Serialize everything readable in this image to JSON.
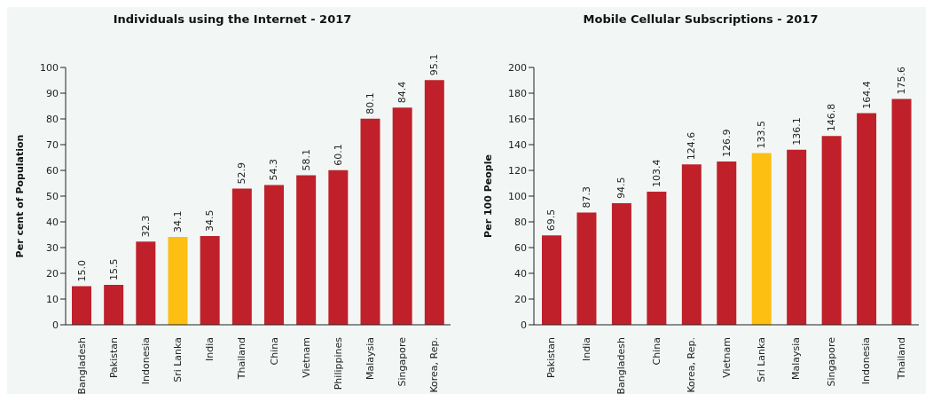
{
  "chart_data": [
    {
      "type": "bar",
      "title": "Individuals using the Internet - 2017",
      "ylabel": "Per cent of Population",
      "categories": [
        "Bangladesh",
        "Pakistan",
        "Indonesia",
        "Sri Lanka",
        "India",
        "Thailand",
        "China",
        "Vietnam",
        "Philippines",
        "Malaysia",
        "Singapore",
        "Korea, Rep."
      ],
      "values": [
        15.0,
        15.5,
        32.3,
        34.1,
        34.5,
        52.9,
        54.3,
        58.1,
        60.1,
        80.1,
        84.4,
        95.1
      ],
      "value_labels": [
        "15.0",
        "15.5",
        "32.3",
        "34.1",
        "34.5",
        "52.9",
        "54.3",
        "58.1",
        "60.1",
        "80.1",
        "84.4",
        "95.1"
      ],
      "colors": [
        "#c0202a",
        "#c0202a",
        "#c0202a",
        "#fcbf12",
        "#c0202a",
        "#c0202a",
        "#c0202a",
        "#c0202a",
        "#c0202a",
        "#c0202a",
        "#c0202a",
        "#c0202a"
      ],
      "ylim": [
        0,
        100
      ],
      "yticks": [
        0,
        10,
        20,
        30,
        40,
        50,
        60,
        70,
        80,
        90,
        100
      ],
      "grid": false,
      "legend": false
    },
    {
      "type": "bar",
      "title": "Mobile Cellular Subscriptions - 2017",
      "ylabel": "Per 100 People",
      "categories": [
        "Pakistan",
        "India",
        "Bangladesh",
        "China",
        "Korea, Rep.",
        "Vietnam",
        "Sri Lanka",
        "Malaysia",
        "Singapore",
        "Indonesia",
        "Thailand"
      ],
      "values": [
        69.5,
        87.3,
        94.5,
        103.4,
        124.6,
        126.9,
        133.5,
        136.1,
        146.8,
        164.4,
        175.6
      ],
      "value_labels": [
        "69.5",
        "87.3",
        "94.5",
        "103.4",
        "124.6",
        "126.9",
        "133.5",
        "136.1",
        "146.8",
        "164.4",
        "175.6"
      ],
      "colors": [
        "#c0202a",
        "#c0202a",
        "#c0202a",
        "#c0202a",
        "#c0202a",
        "#c0202a",
        "#fcbf12",
        "#c0202a",
        "#c0202a",
        "#c0202a",
        "#c0202a"
      ],
      "ylim": [
        0,
        200
      ],
      "yticks": [
        0,
        20,
        40,
        60,
        80,
        100,
        120,
        140,
        160,
        180,
        200
      ],
      "grid": false,
      "legend": false
    }
  ]
}
